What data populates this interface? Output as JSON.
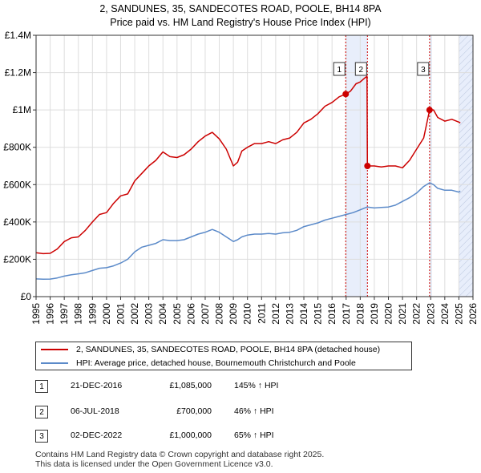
{
  "title_line1": "2, SANDUNES, 35, SANDECOTES ROAD, POOLE, BH14 8PA",
  "title_line2": "Price paid vs. HM Land Registry's House Price Index (HPI)",
  "colors": {
    "property": "#cc0000",
    "hpi": "#5b8ac9",
    "band": "#e8eefb",
    "marker_line": "#cc0000"
  },
  "chart_data": {
    "type": "line",
    "title": "2, SANDUNES, 35, SANDECOTES ROAD, POOLE, BH14 8PA — Price paid vs. HM Land Registry's House Price Index (HPI)",
    "xlabel": "",
    "ylabel": "",
    "xlim": [
      1995,
      2026
    ],
    "ylim": [
      0,
      1400000
    ],
    "y_ticks": [
      0,
      200000,
      400000,
      600000,
      800000,
      1000000,
      1200000,
      1400000
    ],
    "y_tick_labels": [
      "£0",
      "£200K",
      "£400K",
      "£600K",
      "£800K",
      "£1M",
      "£1.2M",
      "£1.4M"
    ],
    "x_ticks": [
      1995,
      1996,
      1997,
      1998,
      1999,
      2000,
      2001,
      2002,
      2003,
      2004,
      2005,
      2006,
      2007,
      2008,
      2009,
      2010,
      2011,
      2012,
      2013,
      2014,
      2015,
      2016,
      2017,
      2018,
      2019,
      2020,
      2021,
      2022,
      2023,
      2024,
      2025,
      2026
    ],
    "x_tick_labels": [
      "1995",
      "1996",
      "1997",
      "1998",
      "1999",
      "2000",
      "2001",
      "2002",
      "2003",
      "2004",
      "2005",
      "2006",
      "2007",
      "2008",
      "2009",
      "2010",
      "2011",
      "2012",
      "2013",
      "2014",
      "2015",
      "2016",
      "2017",
      "2018",
      "2019",
      "2020",
      "2021",
      "2022",
      "2023",
      "2024",
      "2025",
      "2026"
    ],
    "grid": true,
    "shaded_bands": [
      {
        "from": 2016.97,
        "to": 2018.51
      },
      {
        "from": 2022.92,
        "to": 2023.1
      },
      {
        "from": 2025.0,
        "to": 2026.0
      }
    ],
    "series": [
      {
        "name": "2, SANDUNES, 35, SANDECOTES ROAD, POOLE, BH14 8PA (detached house)",
        "x": [
          1995,
          1995.5,
          1996,
          1996.5,
          1997,
          1997.5,
          1998,
          1998.5,
          1999,
          1999.5,
          2000,
          2000.5,
          2001,
          2001.5,
          2002,
          2002.5,
          2003,
          2003.5,
          2004,
          2004.5,
          2005,
          2005.5,
          2006,
          2006.5,
          2007,
          2007.5,
          2008,
          2008.5,
          2009,
          2009.3,
          2009.6,
          2010,
          2010.5,
          2011,
          2011.5,
          2012,
          2012.5,
          2013,
          2013.5,
          2014,
          2014.5,
          2015,
          2015.5,
          2016,
          2016.5,
          2016.97,
          2017.3,
          2017.7,
          2018.0,
          2018.3,
          2018.48,
          2018.51,
          2019,
          2019.5,
          2020,
          2020.5,
          2021,
          2021.5,
          2022,
          2022.5,
          2022.92,
          2023.2,
          2023.5,
          2024,
          2024.5,
          2025,
          2025.1
        ],
        "values": [
          235000,
          230000,
          232000,
          255000,
          295000,
          315000,
          320000,
          355000,
          400000,
          440000,
          450000,
          500000,
          540000,
          550000,
          620000,
          660000,
          700000,
          730000,
          775000,
          750000,
          745000,
          760000,
          790000,
          830000,
          860000,
          880000,
          845000,
          790000,
          700000,
          720000,
          780000,
          800000,
          820000,
          820000,
          830000,
          820000,
          840000,
          850000,
          880000,
          930000,
          950000,
          980000,
          1020000,
          1040000,
          1070000,
          1085000,
          1100000,
          1140000,
          1150000,
          1170000,
          1180000,
          700000,
          700000,
          695000,
          700000,
          700000,
          690000,
          730000,
          790000,
          850000,
          1000000,
          1000000,
          960000,
          940000,
          950000,
          935000,
          930000
        ]
      },
      {
        "name": "HPI: Average price, detached house, Bournemouth Christchurch and Poole",
        "x": [
          1995,
          1995.5,
          1996,
          1996.5,
          1997,
          1997.5,
          1998,
          1998.5,
          1999,
          1999.5,
          2000,
          2000.5,
          2001,
          2001.5,
          2002,
          2002.5,
          2003,
          2003.5,
          2004,
          2004.5,
          2005,
          2005.5,
          2006,
          2006.5,
          2007,
          2007.5,
          2008,
          2008.5,
          2009,
          2009.3,
          2009.6,
          2010,
          2010.5,
          2011,
          2011.5,
          2012,
          2012.5,
          2013,
          2013.5,
          2014,
          2014.5,
          2015,
          2015.5,
          2016,
          2016.5,
          2017,
          2017.5,
          2018,
          2018.5,
          2019,
          2019.5,
          2020,
          2020.5,
          2021,
          2021.5,
          2022,
          2022.5,
          2022.92,
          2023.2,
          2023.5,
          2024,
          2024.5,
          2025,
          2025.1
        ],
        "values": [
          95000,
          93000,
          94000,
          100000,
          110000,
          117000,
          122000,
          128000,
          140000,
          152000,
          155000,
          165000,
          180000,
          200000,
          240000,
          265000,
          275000,
          285000,
          305000,
          300000,
          300000,
          305000,
          320000,
          335000,
          345000,
          360000,
          345000,
          320000,
          295000,
          305000,
          320000,
          330000,
          335000,
          335000,
          338000,
          335000,
          342000,
          345000,
          355000,
          375000,
          385000,
          395000,
          410000,
          420000,
          430000,
          440000,
          450000,
          465000,
          480000,
          475000,
          478000,
          480000,
          490000,
          510000,
          530000,
          555000,
          590000,
          610000,
          600000,
          580000,
          570000,
          570000,
          560000,
          565000
        ]
      }
    ],
    "markers": [
      {
        "label": "1",
        "x": 2016.97,
        "value": 1085000
      },
      {
        "label": "2",
        "x": 2018.51,
        "value": 700000
      },
      {
        "label": "3",
        "x": 2022.92,
        "value": 1000000
      }
    ]
  },
  "legend": {
    "property_label": "2, SANDUNES, 35, SANDECOTES ROAD, POOLE, BH14 8PA (detached house)",
    "hpi_label": "HPI: Average price, detached house, Bournemouth Christchurch and Poole"
  },
  "transactions": [
    {
      "num": "1",
      "date": "21-DEC-2016",
      "price": "£1,085,000",
      "hpi": "145% ↑ HPI"
    },
    {
      "num": "2",
      "date": "06-JUL-2018",
      "price": "£700,000",
      "hpi": "46% ↑ HPI"
    },
    {
      "num": "3",
      "date": "02-DEC-2022",
      "price": "£1,000,000",
      "hpi": "65% ↑ HPI"
    }
  ],
  "footer_line1": "Contains HM Land Registry data © Crown copyright and database right 2025.",
  "footer_line2": "This data is licensed under the Open Government Licence v3.0."
}
